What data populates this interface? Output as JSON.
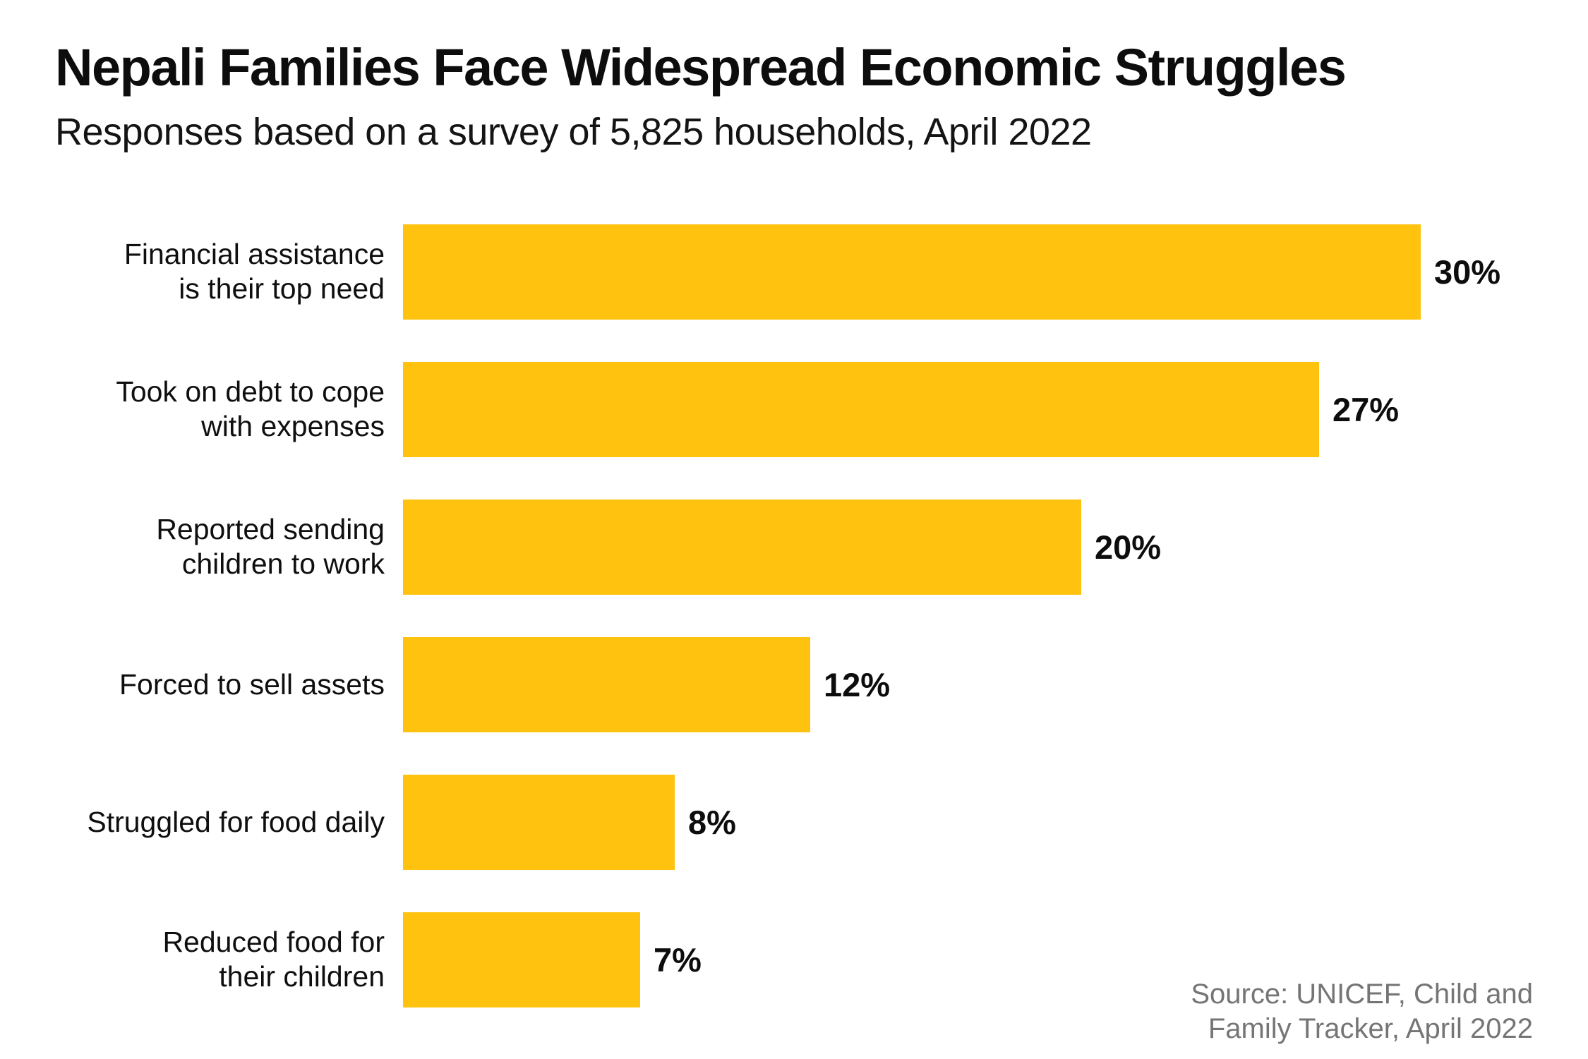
{
  "header": {
    "title": "Nepali Families Face Widespread Economic Struggles",
    "subtitle": "Responses based on a survey of 5,825 households, April 2022"
  },
  "source": {
    "line1": "Source: UNICEF, Child and",
    "line2": "Family Tracker, April 2022"
  },
  "colors": {
    "bar": "#FFC20E",
    "title_text": "#0d0d0d",
    "source_text": "#757575",
    "background": "#ffffff"
  },
  "chart_data": {
    "type": "bar",
    "orientation": "horizontal",
    "title": "Nepali Families Face Widespread Economic Struggles",
    "subtitle": "Responses based on a survey of 5,825 households, April 2022",
    "categories": [
      "Financial assistance\nis their top need",
      "Took on debt to cope\nwith expenses",
      "Reported sending\nchildren to work",
      "Forced to sell assets",
      "Struggled for food daily",
      "Reduced food for\ntheir children"
    ],
    "values": [
      30,
      27,
      20,
      12,
      8,
      7
    ],
    "value_labels": [
      "30%",
      "27%",
      "20%",
      "12%",
      "8%",
      "7%"
    ],
    "value_suffix": "%",
    "xlim": [
      0,
      30
    ],
    "bar_color": "#FFC20E",
    "grid": false,
    "legend": false,
    "axis_lines": false,
    "value_label_position": "right-of-bar",
    "category_label_position": "left-right-aligned"
  }
}
